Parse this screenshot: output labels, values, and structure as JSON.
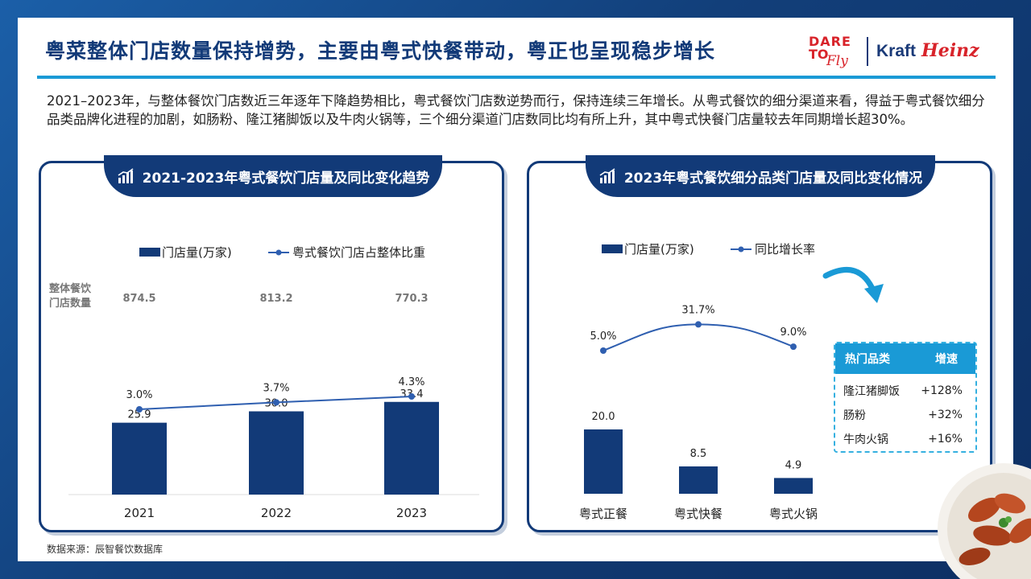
{
  "title": "粤菜整体门店数量保持增势，主要由粤式快餐带动，粤正也呈现稳步增长",
  "logo": {
    "dare": "DARE",
    "to": "TO",
    "fly": "Fly",
    "kraft": "Kraft",
    "heinz": "Heinz"
  },
  "intro": "2021–2023年，与整体餐饮门店数近三年逐年下降趋势相比，粤式餐饮门店数逆势而行，保持连续三年增长。从粤式餐饮的细分渠道来看，得益于粤式餐饮细分品类品牌化进程的加剧，如肠粉、隆江猪脚饭以及牛肉火锅等，三个细分渠道门店数同比均有所上升，其中粤式快餐门店量较去年同期增长超30%。",
  "source": "数据来源：辰智餐饮数据库",
  "colors": {
    "navy": "#123a78",
    "accent": "#1a9ad6",
    "line": "#2f5fb0"
  },
  "chart_data": [
    {
      "type": "bar",
      "title": "2021-2023年粤式餐饮门店量及同比变化趋势",
      "categories": [
        "2021",
        "2022",
        "2023"
      ],
      "series": [
        {
          "name": "门店量(万家)",
          "values": [
            25.9,
            30.0,
            33.4
          ],
          "labels": [
            "25.9",
            "30.0",
            "33.4"
          ]
        },
        {
          "name": "粤式餐饮门店占整体比重",
          "type": "line",
          "values": [
            3.0,
            3.7,
            4.3
          ],
          "labels": [
            "3.0%",
            "3.7%",
            "4.3%"
          ]
        }
      ],
      "extra_row": {
        "label": [
          "整体餐饮",
          "门店数量"
        ],
        "values": [
          "874.5",
          "813.2",
          "770.3"
        ]
      },
      "legend": "top"
    },
    {
      "type": "bar",
      "title": "2023年粤式餐饮细分品类门店量及同比变化情况",
      "categories": [
        "粤式正餐",
        "粤式快餐",
        "粤式火锅"
      ],
      "series": [
        {
          "name": "门店量(万家)",
          "values": [
            20.0,
            8.5,
            4.9
          ],
          "labels": [
            "20.0",
            "8.5",
            "4.9"
          ]
        },
        {
          "name": "同比增长率",
          "type": "line",
          "values": [
            5.0,
            31.7,
            9.0
          ],
          "labels": [
            "5.0%",
            "31.7%",
            "9.0%"
          ]
        }
      ],
      "legend": "top",
      "table": {
        "headers": [
          "热门品类",
          "增速"
        ],
        "rows": [
          [
            "隆江猪脚饭",
            "+128%"
          ],
          [
            "肠粉",
            "+32%"
          ],
          [
            "牛肉火锅",
            "+16%"
          ]
        ]
      }
    }
  ]
}
